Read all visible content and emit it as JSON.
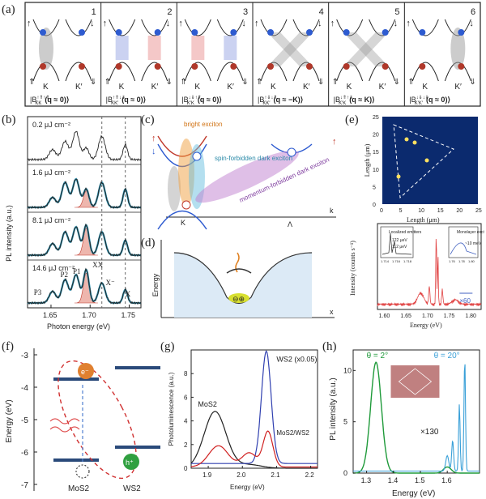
{
  "panel_labels": {
    "a": "(a)",
    "b": "(b)",
    "c": "(c)",
    "d": "(d)",
    "e": "(e)",
    "f": "(f)",
    "g": "(g)",
    "h": "(h)"
  },
  "panel_a": {
    "cells": [
      {
        "num": "1",
        "arrow_left": "↑",
        "arrow_right": "↓",
        "valley_left": "K",
        "valley_right": "K′",
        "spin_left": "⇑",
        "spin_right": "⇓",
        "formula_main": "|B",
        "formula_sup": "↑⇑↑⇑",
        "formula_sub": "KK",
        "formula_tail": "(q ≈ 0)⟩"
      },
      {
        "num": "2",
        "arrow_left": "↑",
        "arrow_right": "↓",
        "valley_left": "K",
        "valley_right": "K′",
        "spin_left": "⇑",
        "spin_right": "⇓",
        "formula_main": "|B",
        "formula_sup": "↑⇑↓⇓",
        "formula_sub": "KK′",
        "formula_tail": "(q ≈ 0)⟩"
      },
      {
        "num": "3",
        "arrow_left": "↑",
        "arrow_right": "↓",
        "valley_left": "K",
        "valley_right": "K′",
        "spin_left": "⇑",
        "spin_right": "⇓",
        "formula_main": "|B",
        "formula_sup": "↓⇓↑⇑",
        "formula_sub": "K′K",
        "formula_tail": "(q ≈ 0)⟩"
      },
      {
        "num": "4",
        "arrow_left": "↑",
        "arrow_right": "↓",
        "valley_left": "K",
        "valley_right": "K′",
        "spin_left": "⇑",
        "spin_right": "⇓",
        "formula_main": "|B",
        "formula_sup": "↑⇓↓⇑",
        "formula_sub": "KK′",
        "formula_tail": "(q ≈ −K)⟩"
      },
      {
        "num": "5",
        "arrow_left": "↑",
        "arrow_right": "↓",
        "valley_left": "K",
        "valley_right": "K′",
        "spin_left": "⇑",
        "spin_right": "⇓",
        "formula_main": "|B",
        "formula_sup": "↓⇑↑⇓",
        "formula_sub": "K′K",
        "formula_tail": "(q ≈ K)⟩"
      },
      {
        "num": "6",
        "arrow_left": "↑",
        "arrow_right": "↓",
        "valley_left": "K",
        "valley_right": "K′",
        "spin_left": "⇑",
        "spin_right": "⇓",
        "formula_main": "|B",
        "formula_sup": "↓⇓↓⇓",
        "formula_sub": "K′K′",
        "formula_tail": "(q ≈ 0)⟩"
      }
    ]
  },
  "panel_b": {
    "ylabel": "PL intensity (a.u.)",
    "xlabel": "Photon energy (eV)",
    "xticks": [
      "1.65",
      "1.70",
      "1.75"
    ],
    "fluences": [
      "0.2 μJ cm⁻²",
      "1.6 μJ cm⁻²",
      "8.1 μJ cm⁻²",
      "14.6 μJ cm⁻²"
    ],
    "peak_labels": {
      "p3": "P3",
      "p2": "P2",
      "p1": "P1",
      "xx": "XX",
      "xminus": "X⁻",
      "x": "X"
    }
  },
  "panel_c": {
    "bright": "bright exciton",
    "spin_forbidden": "spin-forbidden dark exciton",
    "momentum_forbidden": "momentum-forbidden dark exciton",
    "k_label": "K",
    "lambda_label": "Λ",
    "axis_k": "k"
  },
  "panel_d": {
    "ylabel": "Energy",
    "xlabel": "x"
  },
  "panel_e": {
    "map_ylabel": "Length (μm)",
    "map_xlabel": "Length (μm)",
    "map_yticks": [
      "0",
      "5",
      "10",
      "15",
      "20",
      "25"
    ],
    "map_xticks": [
      "0",
      "5",
      "10",
      "15",
      "20",
      "25"
    ],
    "spec_ylabel": "Intensity (counts s⁻¹)",
    "spec_xlabel": "Energy (eV)",
    "spec_xticks": [
      "1.60",
      "1.65",
      "1.70",
      "1.75",
      "1.80"
    ],
    "inset1_title": "Localized emitters",
    "inset1_a": "122 μeV",
    "inset1_b": "112 μeV",
    "inset1_ticks": [
      "1.714",
      "1.716",
      "1.718"
    ],
    "inset2_title": "Monolayer exciton",
    "inset2_a": "~10 meV",
    "inset2_ticks": [
      "1.76",
      "1.78",
      "1.80"
    ],
    "scale": "×60"
  },
  "panel_f": {
    "ylabel": "Energy (eV)",
    "yticks": [
      "-3",
      "-4",
      "-5",
      "-6",
      "-7"
    ],
    "electron": "e⁻",
    "hole": "h⁺",
    "mos2": "MoS2",
    "ws2": "WS2"
  },
  "panel_g": {
    "ylabel": "Photoluminescence (a.u.)",
    "xlabel": "Energy (eV)",
    "yticks": [
      "0",
      "2",
      "4",
      "6",
      "8"
    ],
    "xticks": [
      "1.9",
      "2.0",
      "2.1",
      "2.2"
    ],
    "label_ws2": "WS2 (x0.05)",
    "label_mos2": "MoS2",
    "label_het": "MoS2/WS2",
    "colors": {
      "ws2": "#3040b0",
      "mos2": "#222222",
      "het": "#d02020"
    }
  },
  "panel_h": {
    "ylabel": "PL intensity (a.u.)",
    "xlabel": "Energy (eV)",
    "yticks": [
      "0",
      "5",
      "10"
    ],
    "xticks": [
      "1.3",
      "1.4",
      "1.5",
      "1.6"
    ],
    "theta_green": "θ = 2°",
    "theta_blue": "θ = 20°",
    "scale": "×130",
    "colors": {
      "green": "#1f9a3a",
      "blue": "#3aa0d8"
    }
  },
  "colors": {
    "teal": "#2a8aa8",
    "red": "#c0392b",
    "blue_ball": "#2e5bd0",
    "red_ball": "#b0382a"
  }
}
